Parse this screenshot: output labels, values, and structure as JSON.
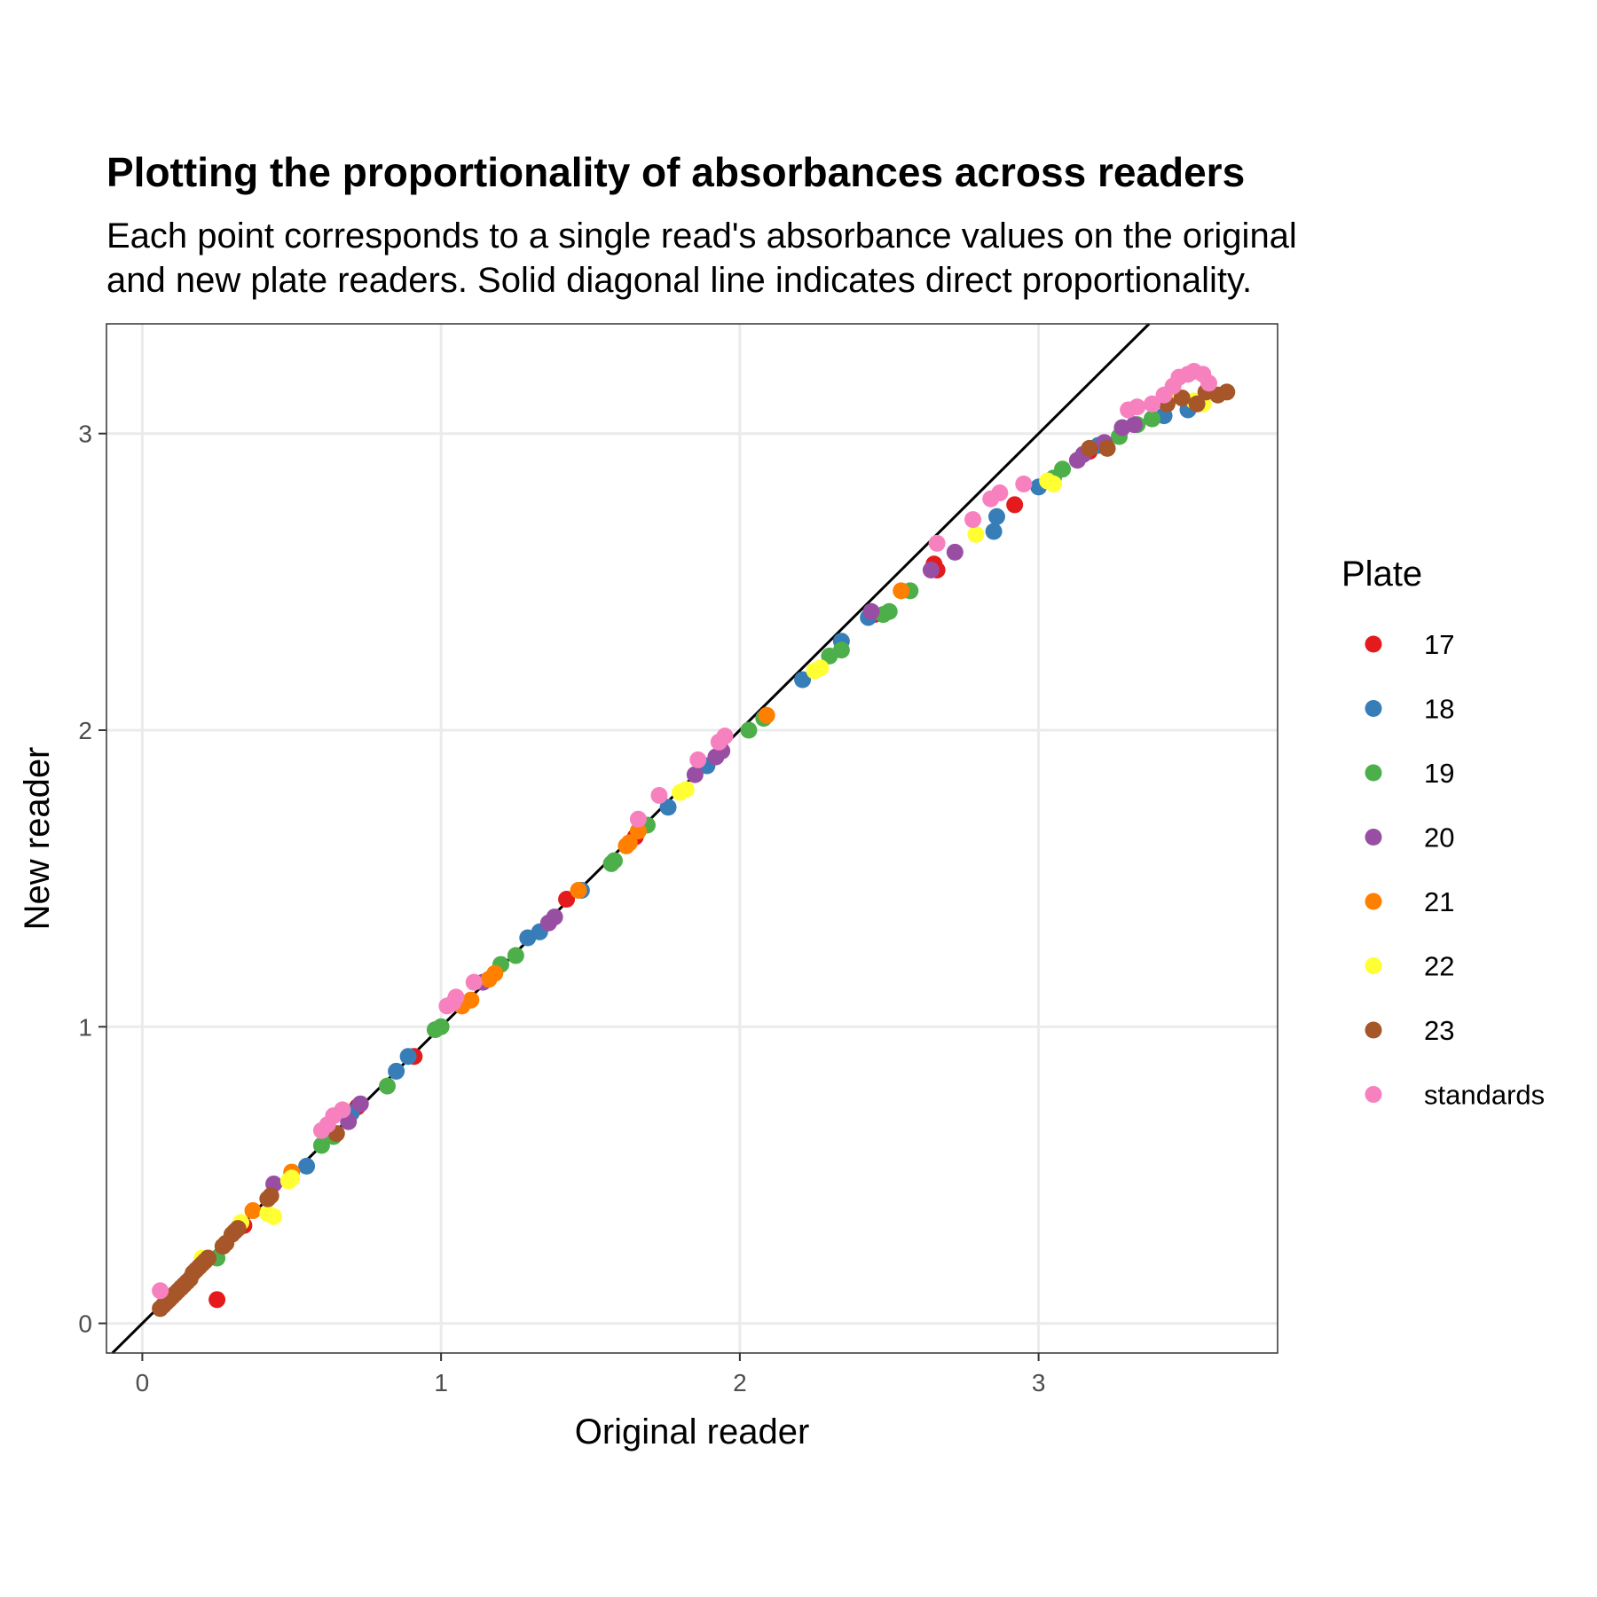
{
  "chart_data": {
    "type": "scatter",
    "title": "Plotting the proportionality of absorbances across readers",
    "subtitle_lines": [
      "Each point corresponds to a single read's absorbance values on the original",
      "and new plate readers. Solid diagonal line indicates direct proportionality."
    ],
    "xlabel": "Original reader",
    "ylabel": "New reader",
    "xlim": [
      -0.12,
      3.8
    ],
    "ylim": [
      -0.1,
      3.37
    ],
    "x_ticks": [
      0,
      1,
      2,
      3
    ],
    "y_ticks": [
      0,
      1,
      2,
      3
    ],
    "x_tick_labels": [
      "0",
      "1",
      "2",
      "3"
    ],
    "y_tick_labels": [
      "0",
      "1",
      "2",
      "3"
    ],
    "grid": true,
    "reference_line": {
      "slope": 1,
      "intercept": 0,
      "label": "direct proportionality"
    },
    "legend": {
      "title": "Plate",
      "position": "right"
    },
    "series": [
      {
        "name": "17",
        "color": "#e41a1c",
        "points": [
          [
            0.09,
            0.08
          ],
          [
            0.25,
            0.08
          ],
          [
            0.13,
            0.12
          ],
          [
            0.34,
            0.33
          ],
          [
            0.72,
            0.73
          ],
          [
            0.91,
            0.9
          ],
          [
            1.42,
            1.43
          ],
          [
            1.65,
            1.64
          ],
          [
            2.45,
            2.39
          ],
          [
            2.65,
            2.56
          ],
          [
            2.66,
            2.54
          ],
          [
            2.92,
            2.76
          ],
          [
            3.17,
            2.94
          ],
          [
            3.38,
            3.05
          ]
        ]
      },
      {
        "name": "18",
        "color": "#377eb8",
        "points": [
          [
            0.55,
            0.53
          ],
          [
            0.7,
            0.71
          ],
          [
            0.85,
            0.85
          ],
          [
            0.89,
            0.9
          ],
          [
            1.29,
            1.3
          ],
          [
            1.33,
            1.32
          ],
          [
            1.47,
            1.46
          ],
          [
            1.76,
            1.74
          ],
          [
            1.89,
            1.88
          ],
          [
            2.21,
            2.17
          ],
          [
            2.34,
            2.3
          ],
          [
            2.43,
            2.38
          ],
          [
            2.85,
            2.67
          ],
          [
            2.86,
            2.72
          ],
          [
            3.0,
            2.82
          ],
          [
            3.2,
            2.96
          ],
          [
            3.42,
            3.06
          ],
          [
            3.5,
            3.08
          ]
        ]
      },
      {
        "name": "19",
        "color": "#4daf4a",
        "points": [
          [
            0.25,
            0.22
          ],
          [
            0.6,
            0.6
          ],
          [
            0.64,
            0.63
          ],
          [
            0.82,
            0.8
          ],
          [
            0.98,
            0.99
          ],
          [
            1.0,
            1.0
          ],
          [
            1.2,
            1.21
          ],
          [
            1.25,
            1.24
          ],
          [
            1.57,
            1.55
          ],
          [
            1.58,
            1.56
          ],
          [
            1.69,
            1.68
          ],
          [
            2.03,
            2.0
          ],
          [
            2.08,
            2.04
          ],
          [
            2.3,
            2.25
          ],
          [
            2.34,
            2.27
          ],
          [
            2.48,
            2.39
          ],
          [
            2.5,
            2.4
          ],
          [
            2.57,
            2.47
          ],
          [
            3.05,
            2.85
          ],
          [
            3.08,
            2.88
          ],
          [
            3.27,
            2.99
          ],
          [
            3.33,
            3.03
          ],
          [
            3.38,
            3.05
          ]
        ]
      },
      {
        "name": "20",
        "color": "#984ea3",
        "points": [
          [
            0.44,
            0.47
          ],
          [
            0.69,
            0.68
          ],
          [
            0.73,
            0.74
          ],
          [
            1.14,
            1.15
          ],
          [
            1.36,
            1.35
          ],
          [
            1.38,
            1.37
          ],
          [
            1.85,
            1.85
          ],
          [
            1.92,
            1.91
          ],
          [
            1.94,
            1.93
          ],
          [
            2.44,
            2.4
          ],
          [
            2.64,
            2.54
          ],
          [
            2.72,
            2.6
          ],
          [
            3.13,
            2.91
          ],
          [
            3.15,
            2.93
          ],
          [
            3.22,
            2.97
          ],
          [
            3.28,
            3.02
          ],
          [
            3.32,
            3.03
          ]
        ]
      },
      {
        "name": "21",
        "color": "#ff7f00",
        "points": [
          [
            0.37,
            0.38
          ],
          [
            0.5,
            0.51
          ],
          [
            1.07,
            1.07
          ],
          [
            1.1,
            1.09
          ],
          [
            1.16,
            1.16
          ],
          [
            1.18,
            1.18
          ],
          [
            1.46,
            1.46
          ],
          [
            1.62,
            1.61
          ],
          [
            1.63,
            1.62
          ],
          [
            1.66,
            1.66
          ],
          [
            2.09,
            2.05
          ],
          [
            2.54,
            2.47
          ]
        ]
      },
      {
        "name": "22",
        "color": "#ffff33",
        "points": [
          [
            0.2,
            0.22
          ],
          [
            0.28,
            0.27
          ],
          [
            0.33,
            0.34
          ],
          [
            0.42,
            0.37
          ],
          [
            0.44,
            0.36
          ],
          [
            0.49,
            0.48
          ],
          [
            0.5,
            0.49
          ],
          [
            1.8,
            1.79
          ],
          [
            1.82,
            1.8
          ],
          [
            2.25,
            2.2
          ],
          [
            2.27,
            2.21
          ],
          [
            2.79,
            2.66
          ],
          [
            3.03,
            2.84
          ],
          [
            3.05,
            2.83
          ],
          [
            3.43,
            3.12
          ],
          [
            3.52,
            3.11
          ],
          [
            3.55,
            3.1
          ]
        ]
      },
      {
        "name": "23",
        "color": "#a65628",
        "points": [
          [
            0.06,
            0.05
          ],
          [
            0.07,
            0.06
          ],
          [
            0.08,
            0.07
          ],
          [
            0.09,
            0.08
          ],
          [
            0.1,
            0.09
          ],
          [
            0.11,
            0.1
          ],
          [
            0.12,
            0.11
          ],
          [
            0.13,
            0.12
          ],
          [
            0.14,
            0.13
          ],
          [
            0.15,
            0.14
          ],
          [
            0.16,
            0.15
          ],
          [
            0.17,
            0.17
          ],
          [
            0.18,
            0.18
          ],
          [
            0.19,
            0.19
          ],
          [
            0.2,
            0.2
          ],
          [
            0.21,
            0.21
          ],
          [
            0.22,
            0.22
          ],
          [
            0.27,
            0.26
          ],
          [
            0.28,
            0.27
          ],
          [
            0.3,
            0.3
          ],
          [
            0.31,
            0.31
          ],
          [
            0.32,
            0.32
          ],
          [
            0.42,
            0.42
          ],
          [
            0.43,
            0.43
          ],
          [
            0.65,
            0.64
          ],
          [
            3.17,
            2.95
          ],
          [
            3.23,
            2.95
          ],
          [
            3.43,
            3.1
          ],
          [
            3.48,
            3.12
          ],
          [
            3.53,
            3.1
          ],
          [
            3.56,
            3.14
          ],
          [
            3.6,
            3.13
          ],
          [
            3.63,
            3.14
          ]
        ]
      },
      {
        "name": "standards",
        "color": "#f781bf",
        "points": [
          [
            0.06,
            0.11
          ],
          [
            0.6,
            0.65
          ],
          [
            0.62,
            0.67
          ],
          [
            0.64,
            0.7
          ],
          [
            0.67,
            0.72
          ],
          [
            1.02,
            1.07
          ],
          [
            1.04,
            1.08
          ],
          [
            1.05,
            1.1
          ],
          [
            1.11,
            1.15
          ],
          [
            1.66,
            1.7
          ],
          [
            1.73,
            1.78
          ],
          [
            1.86,
            1.9
          ],
          [
            1.93,
            1.96
          ],
          [
            1.95,
            1.98
          ],
          [
            2.66,
            2.63
          ],
          [
            2.78,
            2.71
          ],
          [
            2.84,
            2.78
          ],
          [
            2.87,
            2.8
          ],
          [
            2.95,
            2.83
          ],
          [
            3.3,
            3.08
          ],
          [
            3.33,
            3.09
          ],
          [
            3.38,
            3.1
          ],
          [
            3.42,
            3.13
          ],
          [
            3.45,
            3.16
          ],
          [
            3.47,
            3.19
          ],
          [
            3.5,
            3.2
          ],
          [
            3.52,
            3.21
          ],
          [
            3.55,
            3.2
          ],
          [
            3.57,
            3.17
          ]
        ]
      }
    ]
  }
}
